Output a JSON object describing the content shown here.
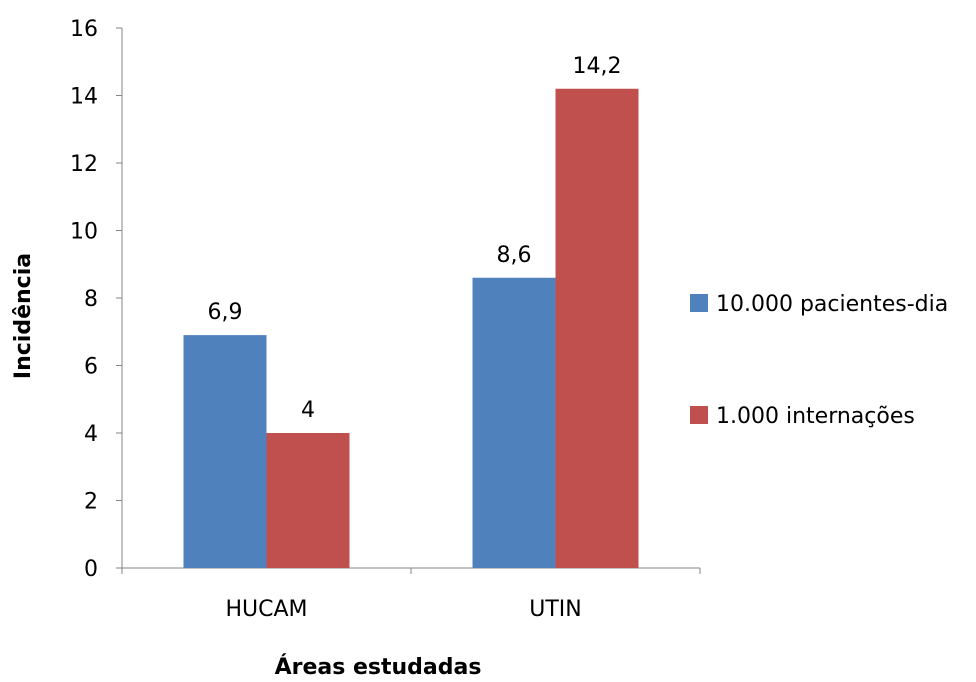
{
  "chart_data": {
    "type": "bar",
    "title": "",
    "xlabel": "Áreas estudadas",
    "ylabel": "Incidência",
    "categories": [
      "HUCAM",
      "UTIN"
    ],
    "series": [
      {
        "name": "10.000 pacientes-dia",
        "color": "#4F81BD",
        "values": [
          6.9,
          8.6
        ],
        "labels": [
          "6,9",
          "8,6"
        ]
      },
      {
        "name": "1.000 internações",
        "color": "#C0504D",
        "values": [
          4,
          14.2
        ],
        "labels": [
          "4",
          "14,2"
        ]
      }
    ],
    "ylim": [
      0,
      16
    ],
    "yticks": [
      0,
      2,
      4,
      6,
      8,
      10,
      12,
      14,
      16
    ],
    "grid": false,
    "legend_position": "right"
  }
}
